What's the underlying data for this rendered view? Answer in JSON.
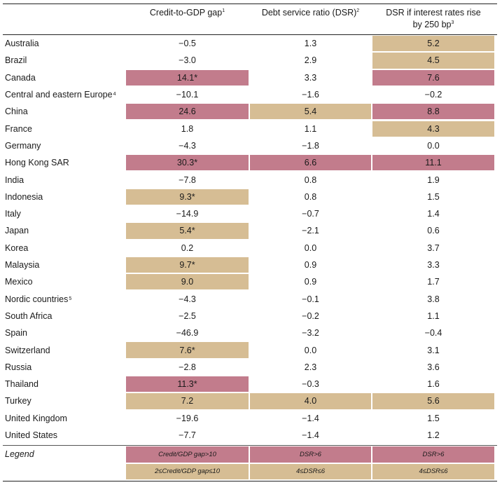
{
  "colors": {
    "high": "#c27c8c",
    "medium": "#d6bd94"
  },
  "headers": {
    "col1": {
      "text": "Credit-to-GDP gap",
      "note": "1"
    },
    "col2": {
      "text": "Debt service ratio (DSR)",
      "note": "2"
    },
    "col3": {
      "line1": "DSR if interest rates rise",
      "line2": "by 250 bp",
      "note": "3"
    }
  },
  "rows": [
    {
      "name": "Australia",
      "note": "",
      "values": [
        "−0.5",
        "1.3",
        "5.2"
      ],
      "levels": [
        "none",
        "none",
        "medium"
      ]
    },
    {
      "name": "Brazil",
      "note": "",
      "values": [
        "−3.0",
        "2.9",
        "4.5"
      ],
      "levels": [
        "none",
        "none",
        "medium"
      ]
    },
    {
      "name": "Canada",
      "note": "",
      "values": [
        "14.1*",
        "3.3",
        "7.6"
      ],
      "levels": [
        "high",
        "none",
        "high"
      ]
    },
    {
      "name": "Central and eastern Europe",
      "note": "4",
      "values": [
        "−10.1",
        "−1.6",
        "−0.2"
      ],
      "levels": [
        "none",
        "none",
        "none"
      ]
    },
    {
      "name": "China",
      "note": "",
      "values": [
        "24.6",
        "5.4",
        "8.8"
      ],
      "levels": [
        "high",
        "medium",
        "high"
      ]
    },
    {
      "name": "France",
      "note": "",
      "values": [
        "1.8",
        "1.1",
        "4.3"
      ],
      "levels": [
        "none",
        "none",
        "medium"
      ]
    },
    {
      "name": "Germany",
      "note": "",
      "values": [
        "−4.3",
        "−1.8",
        "0.0"
      ],
      "levels": [
        "none",
        "none",
        "none"
      ]
    },
    {
      "name": "Hong Kong SAR",
      "note": "",
      "values": [
        "30.3*",
        "6.6",
        "11.1"
      ],
      "levels": [
        "high",
        "high",
        "high"
      ]
    },
    {
      "name": "India",
      "note": "",
      "values": [
        "−7.8",
        "0.8",
        "1.9"
      ],
      "levels": [
        "none",
        "none",
        "none"
      ]
    },
    {
      "name": "Indonesia",
      "note": "",
      "values": [
        "9.3*",
        "0.8",
        "1.5"
      ],
      "levels": [
        "medium",
        "none",
        "none"
      ]
    },
    {
      "name": "Italy",
      "note": "",
      "values": [
        "−14.9",
        "−0.7",
        "1.4"
      ],
      "levels": [
        "none",
        "none",
        "none"
      ]
    },
    {
      "name": "Japan",
      "note": "",
      "values": [
        "5.4*",
        "−2.1",
        "0.6"
      ],
      "levels": [
        "medium",
        "none",
        "none"
      ]
    },
    {
      "name": "Korea",
      "note": "",
      "values": [
        "0.2",
        "0.0",
        "3.7"
      ],
      "levels": [
        "none",
        "none",
        "none"
      ]
    },
    {
      "name": "Malaysia",
      "note": "",
      "values": [
        "9.7*",
        "0.9",
        "3.3"
      ],
      "levels": [
        "medium",
        "none",
        "none"
      ]
    },
    {
      "name": "Mexico",
      "note": "",
      "values": [
        "9.0",
        "0.9",
        "1.7"
      ],
      "levels": [
        "medium",
        "none",
        "none"
      ]
    },
    {
      "name": "Nordic countries",
      "note": "5",
      "values": [
        "−4.3",
        "−0.1",
        "3.8"
      ],
      "levels": [
        "none",
        "none",
        "none"
      ]
    },
    {
      "name": "South Africa",
      "note": "",
      "values": [
        "−2.5",
        "−0.2",
        "1.1"
      ],
      "levels": [
        "none",
        "none",
        "none"
      ]
    },
    {
      "name": "Spain",
      "note": "",
      "values": [
        "−46.9",
        "−3.2",
        "−0.4"
      ],
      "levels": [
        "none",
        "none",
        "none"
      ]
    },
    {
      "name": "Switzerland",
      "note": "",
      "values": [
        "7.6*",
        "0.0",
        "3.1"
      ],
      "levels": [
        "medium",
        "none",
        "none"
      ]
    },
    {
      "name": "Russia",
      "note": "",
      "values": [
        "−2.8",
        "2.3",
        "3.6"
      ],
      "levels": [
        "none",
        "none",
        "none"
      ]
    },
    {
      "name": "Thailand",
      "note": "",
      "values": [
        "11.3*",
        "−0.3",
        "1.6"
      ],
      "levels": [
        "high",
        "none",
        "none"
      ]
    },
    {
      "name": "Turkey",
      "note": "",
      "values": [
        "7.2",
        "4.0",
        "5.6"
      ],
      "levels": [
        "medium",
        "medium",
        "medium"
      ]
    },
    {
      "name": "United Kingdom",
      "note": "",
      "values": [
        "−19.6",
        "−1.4",
        "1.5"
      ],
      "levels": [
        "none",
        "none",
        "none"
      ]
    },
    {
      "name": "United States",
      "note": "",
      "values": [
        "−7.7",
        "−1.4",
        "1.2"
      ],
      "levels": [
        "none",
        "none",
        "none"
      ]
    }
  ],
  "legend": {
    "label": "Legend",
    "high": [
      "Credit/GDP gap>10",
      "DSR>6",
      "DSR>6"
    ],
    "medium": [
      "2≤Credit/GDP gap≤10",
      "4≤DSR≤6",
      "4≤DSR≤6"
    ]
  }
}
